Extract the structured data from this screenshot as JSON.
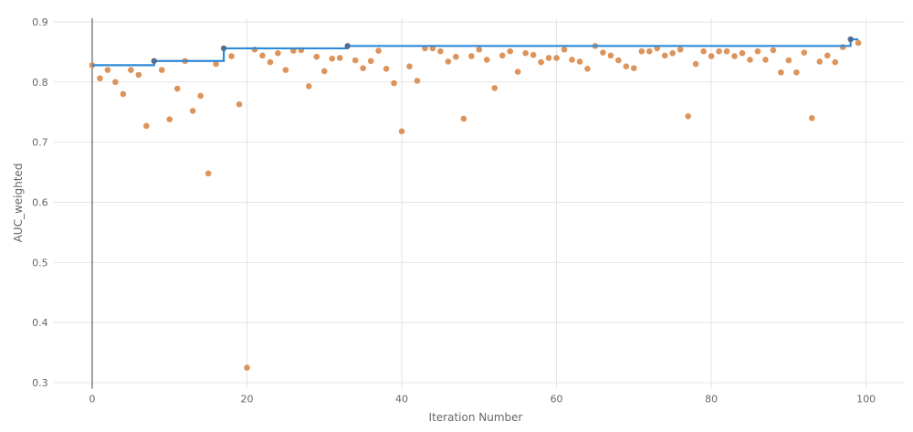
{
  "chart_data": {
    "type": "scatter",
    "xlabel": "Iteration Number",
    "ylabel": "AUC_weighted",
    "xlim": [
      -5,
      105
    ],
    "ylim": [
      0.29,
      0.906
    ],
    "xticks": [
      0,
      20,
      40,
      60,
      80,
      100
    ],
    "yticks": [
      0.3,
      0.4,
      0.5,
      0.6,
      0.7,
      0.8,
      0.9
    ],
    "grid": true,
    "legend": "none",
    "colors": {
      "points": "#d9884a",
      "best_line": "#2e8ad8",
      "grid": "#e4e4e4",
      "zero_line": "#444444"
    },
    "series": [
      {
        "type": "scatter",
        "x": [
          0,
          1,
          2,
          3,
          4,
          5,
          6,
          7,
          8,
          9,
          10,
          11,
          12,
          13,
          14,
          15,
          16,
          17,
          18,
          19,
          20,
          21,
          22,
          23,
          24,
          25,
          26,
          27,
          28,
          29,
          30,
          31,
          32,
          33,
          34,
          35,
          36,
          37,
          38,
          39,
          40,
          41,
          42,
          43,
          44,
          45,
          46,
          47,
          48,
          49,
          50,
          51,
          52,
          53,
          54,
          55,
          56,
          57,
          58,
          59,
          60,
          61,
          62,
          63,
          64,
          65,
          66,
          67,
          68,
          69,
          70,
          71,
          72,
          73,
          74,
          75,
          76,
          77,
          78,
          79,
          80,
          81,
          82,
          83,
          84,
          85,
          86,
          87,
          88,
          89,
          90,
          91,
          92,
          93,
          94,
          95,
          96,
          97,
          98,
          99
        ],
        "y": [
          0.828,
          0.806,
          0.82,
          0.8,
          0.78,
          0.82,
          0.812,
          0.727,
          0.835,
          0.82,
          0.738,
          0.789,
          0.835,
          0.752,
          0.777,
          0.648,
          0.83,
          0.856,
          0.843,
          0.763,
          0.325,
          0.854,
          0.844,
          0.833,
          0.848,
          0.82,
          0.852,
          0.853,
          0.793,
          0.842,
          0.818,
          0.839,
          0.84,
          0.86,
          0.836,
          0.823,
          0.835,
          0.852,
          0.822,
          0.798,
          0.718,
          0.826,
          0.802,
          0.856,
          0.856,
          0.851,
          0.834,
          0.842,
          0.739,
          0.843,
          0.854,
          0.837,
          0.79,
          0.844,
          0.851,
          0.817,
          0.848,
          0.845,
          0.833,
          0.84,
          0.84,
          0.854,
          0.837,
          0.834,
          0.822,
          0.86,
          0.849,
          0.844,
          0.836,
          0.826,
          0.823,
          0.851,
          0.851,
          0.856,
          0.844,
          0.848,
          0.854,
          0.743,
          0.83,
          0.851,
          0.843,
          0.851,
          0.851,
          0.843,
          0.848,
          0.837,
          0.851,
          0.837,
          0.853,
          0.816,
          0.836,
          0.816,
          0.849,
          0.74,
          0.834,
          0.844,
          0.833,
          0.858,
          0.871,
          0.865
        ]
      },
      {
        "type": "line",
        "shape": "step (running best)"
      }
    ]
  }
}
